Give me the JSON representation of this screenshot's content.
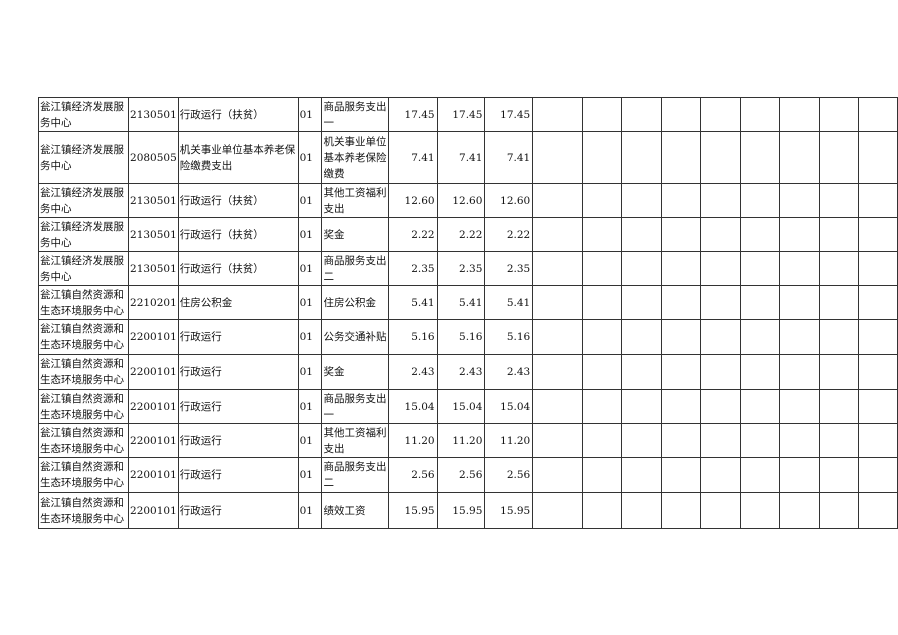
{
  "rows": [
    {
      "unit": "瓮江镇经济发展服务中心",
      "code": "2130501",
      "func": "行政运行（扶贫）",
      "type": "01",
      "item": "商品服务支出一",
      "a": "17.45",
      "b": "17.45",
      "c": "17.45"
    },
    {
      "unit": "瓮江镇经济发展服务中心",
      "code": "2080505",
      "func": "机关事业单位基本养老保险缴费支出",
      "type": "01",
      "item": "机关事业单位基本养老保险缴费",
      "a": "7.41",
      "b": "7.41",
      "c": "7.41"
    },
    {
      "unit": "瓮江镇经济发展服务中心",
      "code": "2130501",
      "func": "行政运行（扶贫）",
      "type": "01",
      "item": "其他工资福利支出",
      "a": "12.60",
      "b": "12.60",
      "c": "12.60"
    },
    {
      "unit": "瓮江镇经济发展服务中心",
      "code": "2130501",
      "func": "行政运行（扶贫）",
      "type": "01",
      "item": "奖金",
      "a": "2.22",
      "b": "2.22",
      "c": "2.22"
    },
    {
      "unit": "瓮江镇经济发展服务中心",
      "code": "2130501",
      "func": "行政运行（扶贫）",
      "type": "01",
      "item": "商品服务支出二",
      "a": "2.35",
      "b": "2.35",
      "c": "2.35"
    },
    {
      "unit": "瓮江镇自然资源和生态环境服务中心",
      "code": "2210201",
      "func": "住房公积金",
      "type": "01",
      "item": "住房公积金",
      "a": "5.41",
      "b": "5.41",
      "c": "5.41"
    },
    {
      "unit": "瓮江镇自然资源和生态环境服务中心",
      "code": "2200101",
      "func": "行政运行",
      "type": "01",
      "item": "公务交通补贴",
      "a": "5.16",
      "b": "5.16",
      "c": "5.16"
    },
    {
      "unit": "瓮江镇自然资源和生态环境服务中心",
      "code": "2200101",
      "func": "行政运行",
      "type": "01",
      "item": "奖金",
      "a": "2.43",
      "b": "2.43",
      "c": "2.43"
    },
    {
      "unit": "瓮江镇自然资源和生态环境服务中心",
      "code": "2200101",
      "func": "行政运行",
      "type": "01",
      "item": "商品服务支出一",
      "a": "15.04",
      "b": "15.04",
      "c": "15.04"
    },
    {
      "unit": "瓮江镇自然资源和生态环境服务中心",
      "code": "2200101",
      "func": "行政运行",
      "type": "01",
      "item": "其他工资福利支出",
      "a": "11.20",
      "b": "11.20",
      "c": "11.20"
    },
    {
      "unit": "瓮江镇自然资源和生态环境服务中心",
      "code": "2200101",
      "func": "行政运行",
      "type": "01",
      "item": "商品服务支出二",
      "a": "2.56",
      "b": "2.56",
      "c": "2.56"
    },
    {
      "unit": "瓮江镇自然资源和生态环境服务中心",
      "code": "2200101",
      "func": "行政运行",
      "type": "01",
      "item": "绩效工资",
      "a": "15.95",
      "b": "15.95",
      "c": "15.95"
    }
  ]
}
